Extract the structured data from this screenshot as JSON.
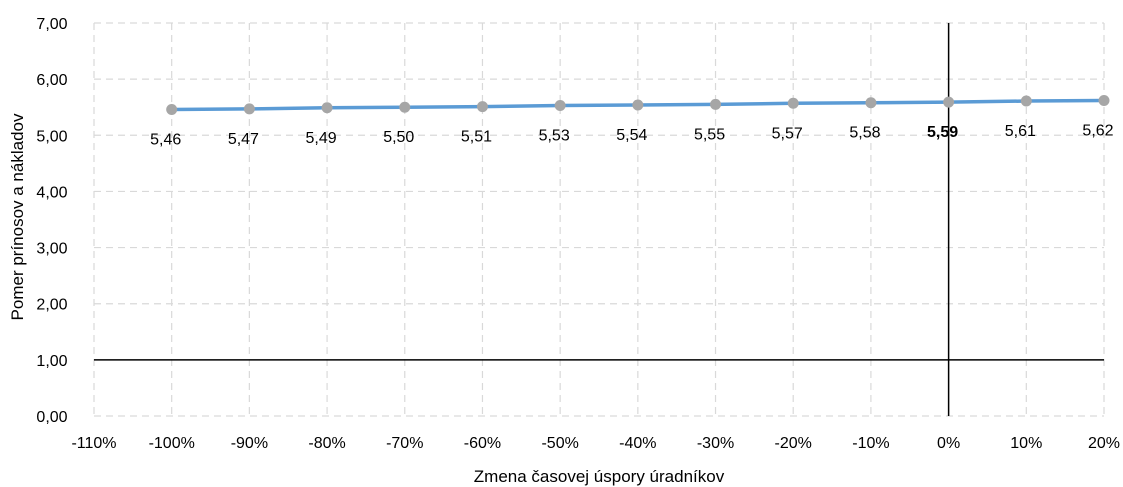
{
  "chart_data": {
    "type": "line",
    "title": "",
    "xlabel": "Zmena časovej úspory úradníkov",
    "ylabel": "Pomer prínosov a nákladov",
    "xlim": [
      -110,
      20
    ],
    "ylim": [
      0,
      7
    ],
    "x_ticks": [
      -110,
      -100,
      -90,
      -80,
      -70,
      -60,
      -50,
      -40,
      -30,
      -20,
      -10,
      0,
      10,
      20
    ],
    "x_tick_labels": [
      "-110%",
      "-100%",
      "-90%",
      "-80%",
      "-70%",
      "-60%",
      "-50%",
      "-40%",
      "-30%",
      "-20%",
      "-10%",
      "0%",
      "10%",
      "20%"
    ],
    "y_ticks": [
      0,
      1,
      2,
      3,
      4,
      5,
      6,
      7
    ],
    "y_tick_labels": [
      "0,00",
      "1,00",
      "2,00",
      "3,00",
      "4,00",
      "5,00",
      "6,00",
      "7,00"
    ],
    "grid": true,
    "grid_style": "dashed",
    "reference_lines": {
      "horizontal_y": 1,
      "vertical_x": 0
    },
    "series": [
      {
        "color": "#5b9bd5",
        "marker_color": "#a6a6a6",
        "x": [
          -100,
          -90,
          -80,
          -70,
          -60,
          -50,
          -40,
          -30,
          -20,
          -10,
          0,
          10,
          20
        ],
        "values": [
          5.46,
          5.47,
          5.49,
          5.5,
          5.51,
          5.53,
          5.54,
          5.55,
          5.57,
          5.58,
          5.59,
          5.61,
          5.62
        ],
        "data_labels": [
          "5,46",
          "5,47",
          "5,49",
          "5,50",
          "5,51",
          "5,53",
          "5,54",
          "5,55",
          "5,57",
          "5,58",
          "5,59",
          "5,61",
          "5,62"
        ],
        "bold_label_x": 0
      }
    ]
  }
}
